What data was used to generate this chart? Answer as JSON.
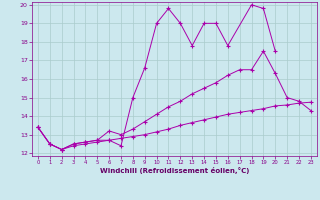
{
  "xlabel": "Windchill (Refroidissement éolien,°C)",
  "bg_color": "#cce8ee",
  "line_color": "#aa00aa",
  "xlim": [
    -0.5,
    23.5
  ],
  "ylim": [
    11.85,
    20.15
  ],
  "xticks": [
    0,
    1,
    2,
    3,
    4,
    5,
    6,
    7,
    8,
    9,
    10,
    11,
    12,
    13,
    14,
    15,
    16,
    17,
    18,
    19,
    20,
    21,
    22,
    23
  ],
  "yticks": [
    12,
    13,
    14,
    15,
    16,
    17,
    18,
    19,
    20
  ],
  "grid_color": "#aacccc",
  "line1_x": [
    0,
    1,
    2,
    3,
    4,
    5,
    6,
    7,
    8,
    9,
    10,
    11,
    12,
    13,
    14,
    15,
    16,
    18,
    19,
    20
  ],
  "line1_y": [
    13.4,
    12.5,
    12.2,
    12.5,
    12.6,
    12.7,
    12.7,
    12.4,
    15.0,
    16.6,
    19.0,
    19.8,
    19.0,
    17.8,
    19.0,
    19.0,
    17.8,
    20.0,
    19.8,
    17.5
  ],
  "line2_x": [
    0,
    1,
    2,
    3,
    4,
    5,
    6,
    7,
    8,
    9,
    10,
    11,
    12,
    13,
    14,
    15,
    16,
    17,
    18,
    19,
    20,
    21,
    22,
    23
  ],
  "line2_y": [
    13.4,
    12.5,
    12.2,
    12.5,
    12.6,
    12.7,
    13.2,
    13.0,
    13.3,
    13.7,
    14.1,
    14.5,
    14.8,
    15.2,
    15.5,
    15.8,
    16.2,
    16.5,
    16.5,
    17.5,
    16.3,
    15.0,
    14.8,
    14.3
  ],
  "line3_x": [
    0,
    1,
    2,
    3,
    4,
    5,
    6,
    7,
    8,
    9,
    10,
    11,
    12,
    13,
    14,
    15,
    16,
    17,
    18,
    19,
    20,
    21,
    22,
    23
  ],
  "line3_y": [
    13.4,
    12.5,
    12.2,
    12.4,
    12.5,
    12.6,
    12.7,
    12.8,
    12.9,
    13.0,
    13.15,
    13.3,
    13.5,
    13.65,
    13.8,
    13.95,
    14.1,
    14.2,
    14.3,
    14.4,
    14.55,
    14.6,
    14.7,
    14.75
  ]
}
